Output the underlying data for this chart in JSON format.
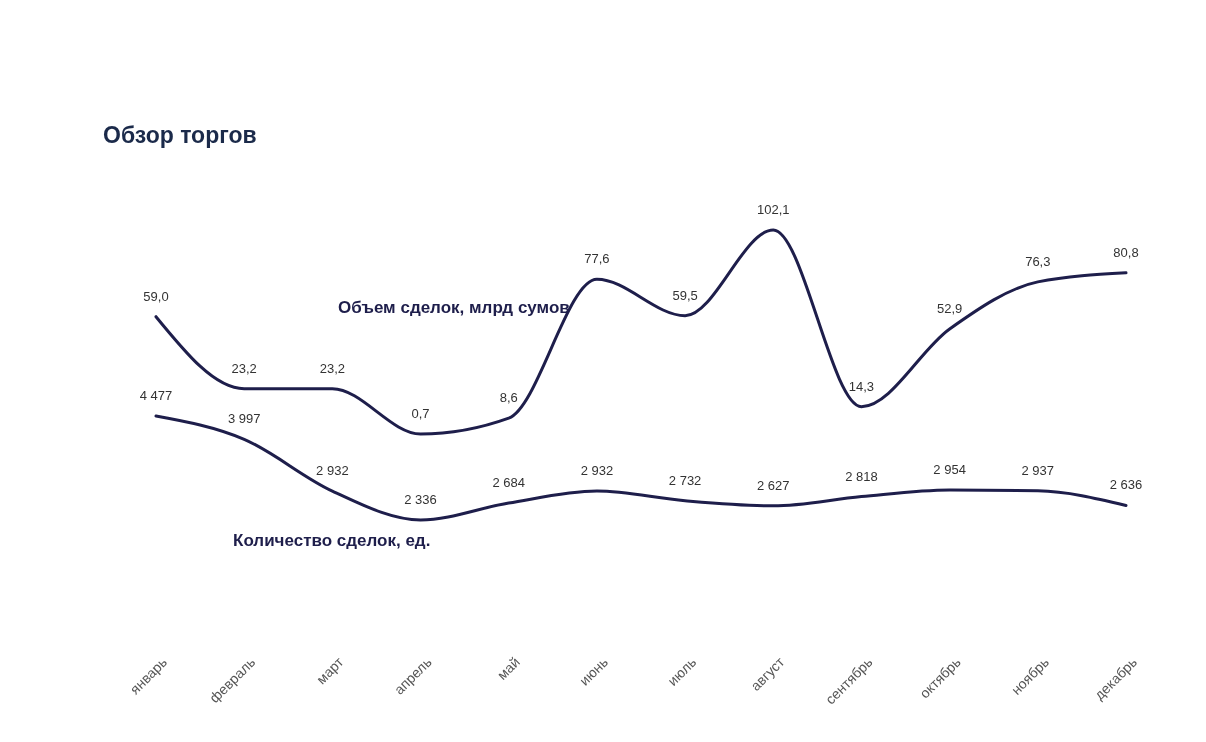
{
  "chart_data": {
    "type": "line",
    "title": "Обзор торгов",
    "categories": [
      "январь",
      "февраль",
      "март",
      "апрель",
      "май",
      "июнь",
      "июль",
      "август",
      "сентябрь",
      "октябрь",
      "ноябрь",
      "декабрь"
    ],
    "series": [
      {
        "name": "Объем сделок, млрд сумов",
        "color": "#1e1e4b",
        "values": [
          59.0,
          23.2,
          23.2,
          0.7,
          8.6,
          77.6,
          59.5,
          102.1,
          14.3,
          52.9,
          76.3,
          80.8
        ],
        "value_labels": [
          "59,0",
          "23,2",
          "23,2",
          "0,7",
          "8,6",
          "77,6",
          "59,5",
          "102,1",
          "14,3",
          "52,9",
          "76,3",
          "80,8"
        ]
      },
      {
        "name": "Количество сделок, ед.",
        "color": "#1e1e4b",
        "axis": "y2",
        "values": [
          4477,
          3997,
          2932,
          2336,
          2684,
          2932,
          2732,
          2627,
          2818,
          2954,
          2937,
          2636
        ],
        "value_labels": [
          "4 477",
          "3 997",
          "2 932",
          "2 336",
          "2 684",
          "2 932",
          "2 732",
          "2 627",
          "2 818",
          "2 954",
          "2 937",
          "2 636"
        ]
      }
    ],
    "tick_labels": "x",
    "marker": "none",
    "line_style": "solid"
  }
}
